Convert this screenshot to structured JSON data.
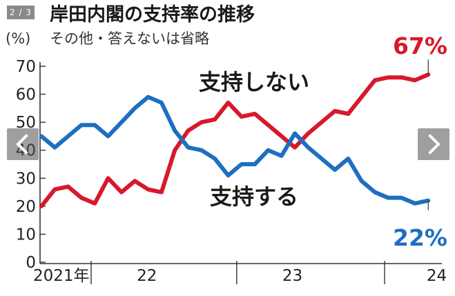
{
  "viewer": {
    "counter": "2 / 3",
    "prev_icon": "chevron-left-icon",
    "next_icon": "chevron-right-icon"
  },
  "chart_data": {
    "type": "line",
    "title": "岸田内閣の支持率の推移",
    "subtitle": "その他・答えないは省略",
    "ylabel": "(%)",
    "ylim": [
      0,
      70
    ],
    "yticks": [
      "0",
      "10",
      "20",
      "30",
      "40",
      "50",
      "60",
      "70"
    ],
    "xtick_labels": [
      {
        "label": "2021年",
        "x": 0.0
      },
      {
        "label": "22",
        "x": 8.7
      },
      {
        "label": "23",
        "x": 20.7
      },
      {
        "label": "24",
        "x": 32.6
      }
    ],
    "year_boundaries": [
      4.1,
      16.1,
      28.3
    ],
    "x_range": [
      0,
      32
    ],
    "grid": false,
    "series": [
      {
        "name": "支持しない",
        "color": "#d8192b",
        "end_label": "67%",
        "values": [
          20,
          26,
          27,
          23,
          21,
          30,
          25,
          29,
          26,
          25,
          40,
          47,
          50,
          51,
          57,
          52,
          53,
          49,
          45,
          41,
          46,
          50,
          54,
          53,
          59,
          65,
          66,
          66,
          65,
          67
        ]
      },
      {
        "name": "支持する",
        "color": "#1e6fc0",
        "end_label": "22%",
        "values": [
          45,
          41,
          45,
          49,
          49,
          45,
          50,
          55,
          59,
          57,
          47,
          41,
          40,
          37,
          31,
          35,
          35,
          40,
          38,
          46,
          41,
          37,
          33,
          37,
          29,
          25,
          23,
          23,
          21,
          22
        ]
      }
    ],
    "series_x": [
      0,
      1.1,
      2.2,
      3.3,
      4.4,
      5.5,
      6.6,
      7.7,
      8.8,
      9.9,
      11.0,
      12.1,
      13.2,
      14.3,
      15.4,
      16.5,
      17.6,
      18.7,
      19.8,
      20.9,
      22.0,
      23.1,
      24.2,
      25.3,
      26.4,
      27.5,
      28.6,
      29.7,
      30.8,
      31.9
    ]
  }
}
